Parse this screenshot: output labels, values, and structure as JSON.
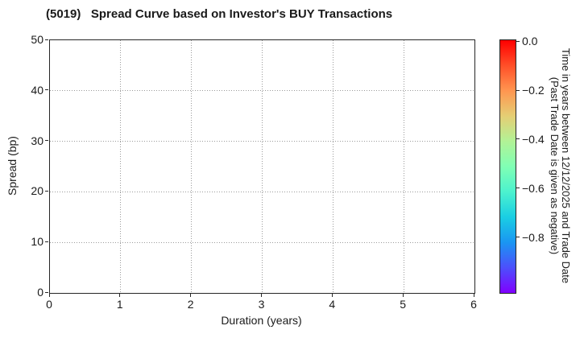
{
  "title": "(5019)   Spread Curve based on Investor's BUY Transactions",
  "chart_data": {
    "type": "scatter",
    "title": "(5019)   Spread Curve based on Investor's BUY Transactions",
    "xlabel": "Duration (years)",
    "ylabel": "Spread (bp)",
    "xlim": [
      0,
      6
    ],
    "ylim": [
      0,
      50
    ],
    "x_ticks": [
      0,
      1,
      2,
      3,
      4,
      5,
      6
    ],
    "y_ticks": [
      0,
      10,
      20,
      30,
      40,
      50
    ],
    "grid": "dotted",
    "points": [],
    "colorbar": {
      "label_lines": [
        "Time in years between 12/12/2025 and Trade Date",
        "(Past Trade Date is given as negative)"
      ],
      "tick_labels": [
        "0.0",
        "−0.2",
        "−0.4",
        "−0.6",
        "−0.8"
      ],
      "tick_values": [
        0.0,
        -0.2,
        -0.4,
        -0.6,
        -0.8
      ],
      "vmax": 0.007,
      "vmin": -1.024,
      "colormap": "rainbow (0.0 red at top, most negative violet at bottom)",
      "gradient_stops": [
        {
          "pos": 0,
          "color": "#ff0000"
        },
        {
          "pos": 10,
          "color": "#ff4f28"
        },
        {
          "pos": 20,
          "color": "#ff9650"
        },
        {
          "pos": 30,
          "color": "#e5ce74"
        },
        {
          "pos": 40,
          "color": "#b2f296"
        },
        {
          "pos": 50,
          "color": "#80ffb4"
        },
        {
          "pos": 60,
          "color": "#4cf2ce"
        },
        {
          "pos": 70,
          "color": "#1acee3"
        },
        {
          "pos": 80,
          "color": "#1a96f2"
        },
        {
          "pos": 90,
          "color": "#4c4ffc"
        },
        {
          "pos": 100,
          "color": "#8000ff"
        }
      ]
    }
  },
  "colors": {
    "background": "#ffffff",
    "text": "#1a1a1a",
    "spine": "#262626",
    "grid": "#9a9a9a"
  }
}
